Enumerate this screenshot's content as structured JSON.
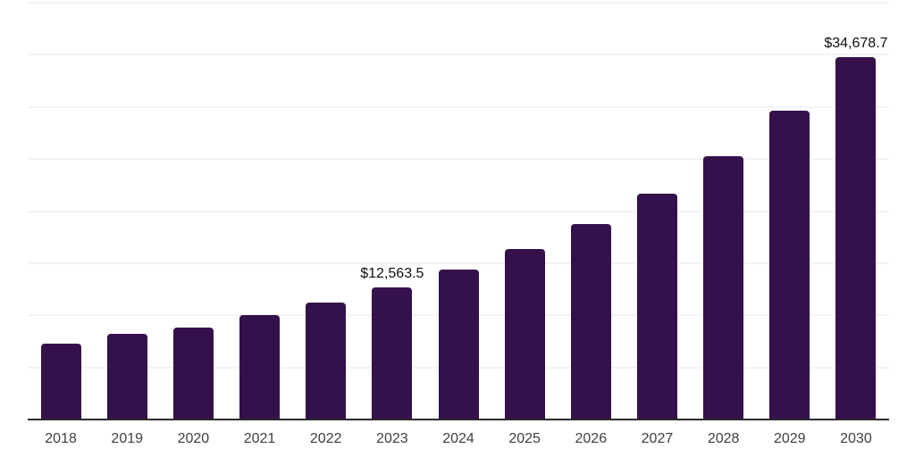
{
  "chart_data": {
    "type": "bar",
    "title": "",
    "xlabel": "",
    "ylabel": "",
    "categories": [
      "2018",
      "2019",
      "2020",
      "2021",
      "2022",
      "2023",
      "2024",
      "2025",
      "2026",
      "2027",
      "2028",
      "2029",
      "2030"
    ],
    "values": [
      7200,
      8100,
      8750,
      9900,
      11100,
      12563.5,
      14300,
      16300,
      18700,
      21600,
      25200,
      29550,
      34678.7
    ],
    "value_labels": {
      "2023": "$12,563.5",
      "2030": "$34,678.7"
    },
    "ylim": [
      0,
      40000
    ],
    "gridline_step": 5000,
    "grid": true,
    "legend": "none",
    "y_axis_tick_labels_shown": false,
    "colors": {
      "bar": "#35114B",
      "axis_line": "#2b2b2b",
      "gridline": "#f3f3f3",
      "x_tick_label": "#3f3f3f",
      "value_label": "#0f0f0f",
      "background": "#ffffff"
    }
  }
}
